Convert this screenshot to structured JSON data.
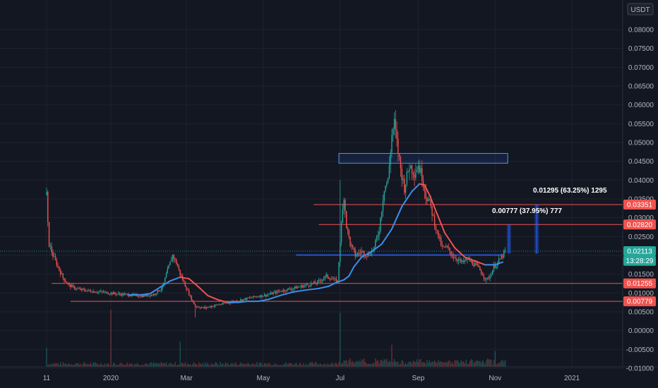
{
  "currency_label": "USDT",
  "chart_data": {
    "type": "candlestick",
    "y_axis": {
      "min": -0.01,
      "max": 0.08,
      "ticks": [
        0.08,
        0.075,
        0.07,
        0.065,
        0.06,
        0.055,
        0.05,
        0.045,
        0.04,
        0.035,
        0.03,
        0.025,
        0.02,
        0.015,
        0.01,
        0.005,
        0.0,
        -0.005,
        -0.01
      ],
      "tick_labels": [
        "0.08000",
        "0.07500",
        "0.07000",
        "0.06500",
        "0.06000",
        "0.05500",
        "0.05000",
        "0.04500",
        "0.04000",
        "0.03500",
        "0.03000",
        "0.02500",
        "0.02000",
        "0.01500",
        "0.01000",
        "0.00500",
        "0.00000",
        "-0.00500",
        "-0.01000"
      ]
    },
    "x_axis": {
      "labels": [
        {
          "label": "11",
          "day": 0
        },
        {
          "label": "2020",
          "day": 51
        },
        {
          "label": "Mar",
          "day": 111
        },
        {
          "label": "May",
          "day": 172
        },
        {
          "label": "Jul",
          "day": 233
        },
        {
          "label": "Sep",
          "day": 295
        },
        {
          "label": "Nov",
          "day": 356
        },
        {
          "label": "2021",
          "day": 417
        }
      ],
      "range_days": [
        -3,
        457
      ]
    },
    "price_path": [
      [
        0,
        0.036
      ],
      [
        1,
        0.028
      ],
      [
        2,
        0.023
      ],
      [
        5,
        0.02
      ],
      [
        9,
        0.017
      ],
      [
        13,
        0.014
      ],
      [
        18,
        0.012
      ],
      [
        25,
        0.011
      ],
      [
        35,
        0.0105
      ],
      [
        45,
        0.0102
      ],
      [
        55,
        0.0098
      ],
      [
        65,
        0.0095
      ],
      [
        75,
        0.0092
      ],
      [
        85,
        0.0096
      ],
      [
        92,
        0.0115
      ],
      [
        96,
        0.016
      ],
      [
        100,
        0.02
      ],
      [
        103,
        0.018
      ],
      [
        106,
        0.015
      ],
      [
        110,
        0.012
      ],
      [
        114,
        0.009
      ],
      [
        118,
        0.0065
      ],
      [
        125,
        0.006
      ],
      [
        135,
        0.0068
      ],
      [
        145,
        0.0075
      ],
      [
        155,
        0.0082
      ],
      [
        165,
        0.009
      ],
      [
        175,
        0.0095
      ],
      [
        185,
        0.0105
      ],
      [
        195,
        0.0112
      ],
      [
        205,
        0.012
      ],
      [
        215,
        0.0128
      ],
      [
        222,
        0.0145
      ],
      [
        228,
        0.0135
      ],
      [
        231,
        0.013
      ],
      [
        233,
        0.024
      ],
      [
        236,
        0.036
      ],
      [
        238,
        0.028
      ],
      [
        241,
        0.023
      ],
      [
        245,
        0.02
      ],
      [
        250,
        0.021
      ],
      [
        255,
        0.02
      ],
      [
        260,
        0.022
      ],
      [
        264,
        0.027
      ],
      [
        268,
        0.038
      ],
      [
        271,
        0.04
      ],
      [
        274,
        0.052
      ],
      [
        276,
        0.055
      ],
      [
        278,
        0.05
      ],
      [
        281,
        0.043
      ],
      [
        284,
        0.038
      ],
      [
        288,
        0.044
      ],
      [
        292,
        0.042
      ],
      [
        295,
        0.044
      ],
      [
        298,
        0.041
      ],
      [
        301,
        0.036
      ],
      [
        304,
        0.034
      ],
      [
        307,
        0.03
      ],
      [
        310,
        0.026
      ],
      [
        314,
        0.022
      ],
      [
        318,
        0.022
      ],
      [
        322,
        0.02
      ],
      [
        326,
        0.019
      ],
      [
        330,
        0.018
      ],
      [
        334,
        0.019
      ],
      [
        338,
        0.018
      ],
      [
        342,
        0.017
      ],
      [
        346,
        0.015
      ],
      [
        349,
        0.0135
      ],
      [
        352,
        0.0145
      ],
      [
        355,
        0.017
      ],
      [
        358,
        0.018
      ],
      [
        361,
        0.0195
      ],
      [
        364,
        0.0211
      ]
    ],
    "ma_line": {
      "color_up": "#3d8fe8",
      "color_down": "#ef5350",
      "points": [
        [
          65,
          0.0095
        ],
        [
          75,
          0.0095
        ],
        [
          82,
          0.0098
        ],
        [
          90,
          0.0115
        ],
        [
          98,
          0.0132
        ],
        [
          106,
          0.0142
        ],
        [
          113,
          0.0138
        ],
        [
          120,
          0.0118
        ],
        [
          128,
          0.0093
        ],
        [
          136,
          0.0082
        ],
        [
          144,
          0.0075
        ],
        [
          152,
          0.0075
        ],
        [
          160,
          0.0078
        ],
        [
          168,
          0.0078
        ],
        [
          176,
          0.0083
        ],
        [
          186,
          0.0094
        ],
        [
          196,
          0.0103
        ],
        [
          206,
          0.0108
        ],
        [
          216,
          0.0112
        ],
        [
          224,
          0.0118
        ],
        [
          230,
          0.0128
        ],
        [
          236,
          0.0135
        ],
        [
          240,
          0.0145
        ],
        [
          244,
          0.017
        ],
        [
          250,
          0.0195
        ],
        [
          258,
          0.021
        ],
        [
          266,
          0.023
        ],
        [
          274,
          0.027
        ],
        [
          282,
          0.033
        ],
        [
          290,
          0.037
        ],
        [
          296,
          0.039
        ],
        [
          300,
          0.0387
        ],
        [
          304,
          0.036
        ],
        [
          310,
          0.031
        ],
        [
          316,
          0.026
        ],
        [
          324,
          0.022
        ],
        [
          332,
          0.0195
        ],
        [
          340,
          0.0185
        ],
        [
          348,
          0.0175
        ],
        [
          356,
          0.0175
        ],
        [
          362,
          0.0182
        ]
      ]
    },
    "rectangle": {
      "day_start": 232,
      "day_end": 366,
      "price_top": 0.0471,
      "price_bottom": 0.0445,
      "color": "#2962ff"
    },
    "horizontal_lines": [
      {
        "price": 0.03351,
        "day_start": 212,
        "color": "#ef5350"
      },
      {
        "price": 0.0282,
        "day_start": 216,
        "color": "#ef5350"
      },
      {
        "price": 0.01255,
        "day_start": 4,
        "color": "#ef5350"
      },
      {
        "price": 0.00779,
        "day_start": 19,
        "color": "#ef5350"
      },
      {
        "price": 0.0201,
        "day_start": 198,
        "day_end": 362,
        "color": "#2962ff"
      }
    ],
    "price_tags": [
      {
        "label": "0.03351",
        "price": 0.03351,
        "color": "#ef5350"
      },
      {
        "label": "0.02820",
        "price": 0.0282,
        "color": "#ef5350"
      },
      {
        "label": "0.02113",
        "price": 0.02113,
        "color": "#26a69a"
      },
      {
        "label": "13:28:29",
        "price": 0.01855,
        "color": "#26a69a"
      },
      {
        "label": "0.01255",
        "price": 0.01255,
        "color": "#ef5350"
      },
      {
        "label": "0.00779",
        "price": 0.00779,
        "color": "#ef5350"
      }
    ],
    "measurements": [
      {
        "label": "0.01295 (63.25%) 1295",
        "day": 389,
        "price_top": 0.03351,
        "price_bottom": 0.0205
      },
      {
        "label": "0.00777 (37.95%) 777",
        "day": 367,
        "price_top": 0.0282,
        "price_bottom": 0.0205
      }
    ],
    "volume_spikes": [
      [
        0,
        0.3
      ],
      [
        51,
        0.9
      ],
      [
        106,
        0.4
      ],
      [
        233,
        0.85
      ],
      [
        274,
        0.35
      ],
      [
        356,
        0.25
      ]
    ]
  }
}
